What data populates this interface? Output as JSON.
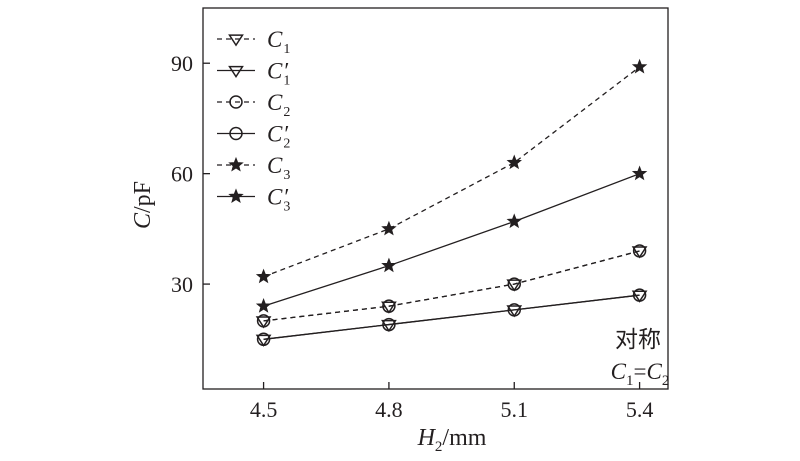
{
  "chart_data": {
    "type": "line",
    "xlabel_main": "H",
    "xlabel_sub": "2",
    "xlabel_unit": "/mm",
    "ylabel_main": "C",
    "ylabel_unit": "/pF",
    "x": [
      4.5,
      4.8,
      5.1,
      5.4
    ],
    "xticks": [
      "4.5",
      "4.8",
      "5.1",
      "5.4"
    ],
    "yticks": [
      "30",
      "60",
      "90"
    ],
    "ytick_values": [
      30,
      60,
      90
    ],
    "xlim": [
      4.355,
      5.468
    ],
    "ylim": [
      1.5,
      105
    ],
    "color": "#231f20",
    "grid": false,
    "legend_position": "top-left",
    "series": [
      {
        "name": "C",
        "sub": "1",
        "prime": "",
        "marker": "triangle-down",
        "dash": true,
        "values": [
          20,
          24,
          30,
          39
        ]
      },
      {
        "name": "C",
        "sub": "1",
        "prime": "′",
        "marker": "triangle-down",
        "dash": false,
        "values": [
          15,
          19,
          23,
          27
        ]
      },
      {
        "name": "C",
        "sub": "2",
        "prime": "",
        "marker": "circle",
        "dash": true,
        "values": [
          20,
          24,
          30,
          39
        ]
      },
      {
        "name": "C",
        "sub": "2",
        "prime": "′",
        "marker": "circle",
        "dash": false,
        "values": [
          15,
          19,
          23,
          27
        ]
      },
      {
        "name": "C",
        "sub": "3",
        "prime": "",
        "marker": "star",
        "dash": true,
        "values": [
          32,
          45,
          63,
          89
        ]
      },
      {
        "name": "C",
        "sub": "3",
        "prime": "′",
        "marker": "star",
        "dash": false,
        "values": [
          24,
          35,
          47,
          60
        ]
      }
    ],
    "annotation": {
      "line1": "对称",
      "line2_a": "C",
      "line2_a_sub": "1",
      "line2_eq": "=",
      "line2_b": "C",
      "line2_b_sub": "2"
    }
  }
}
